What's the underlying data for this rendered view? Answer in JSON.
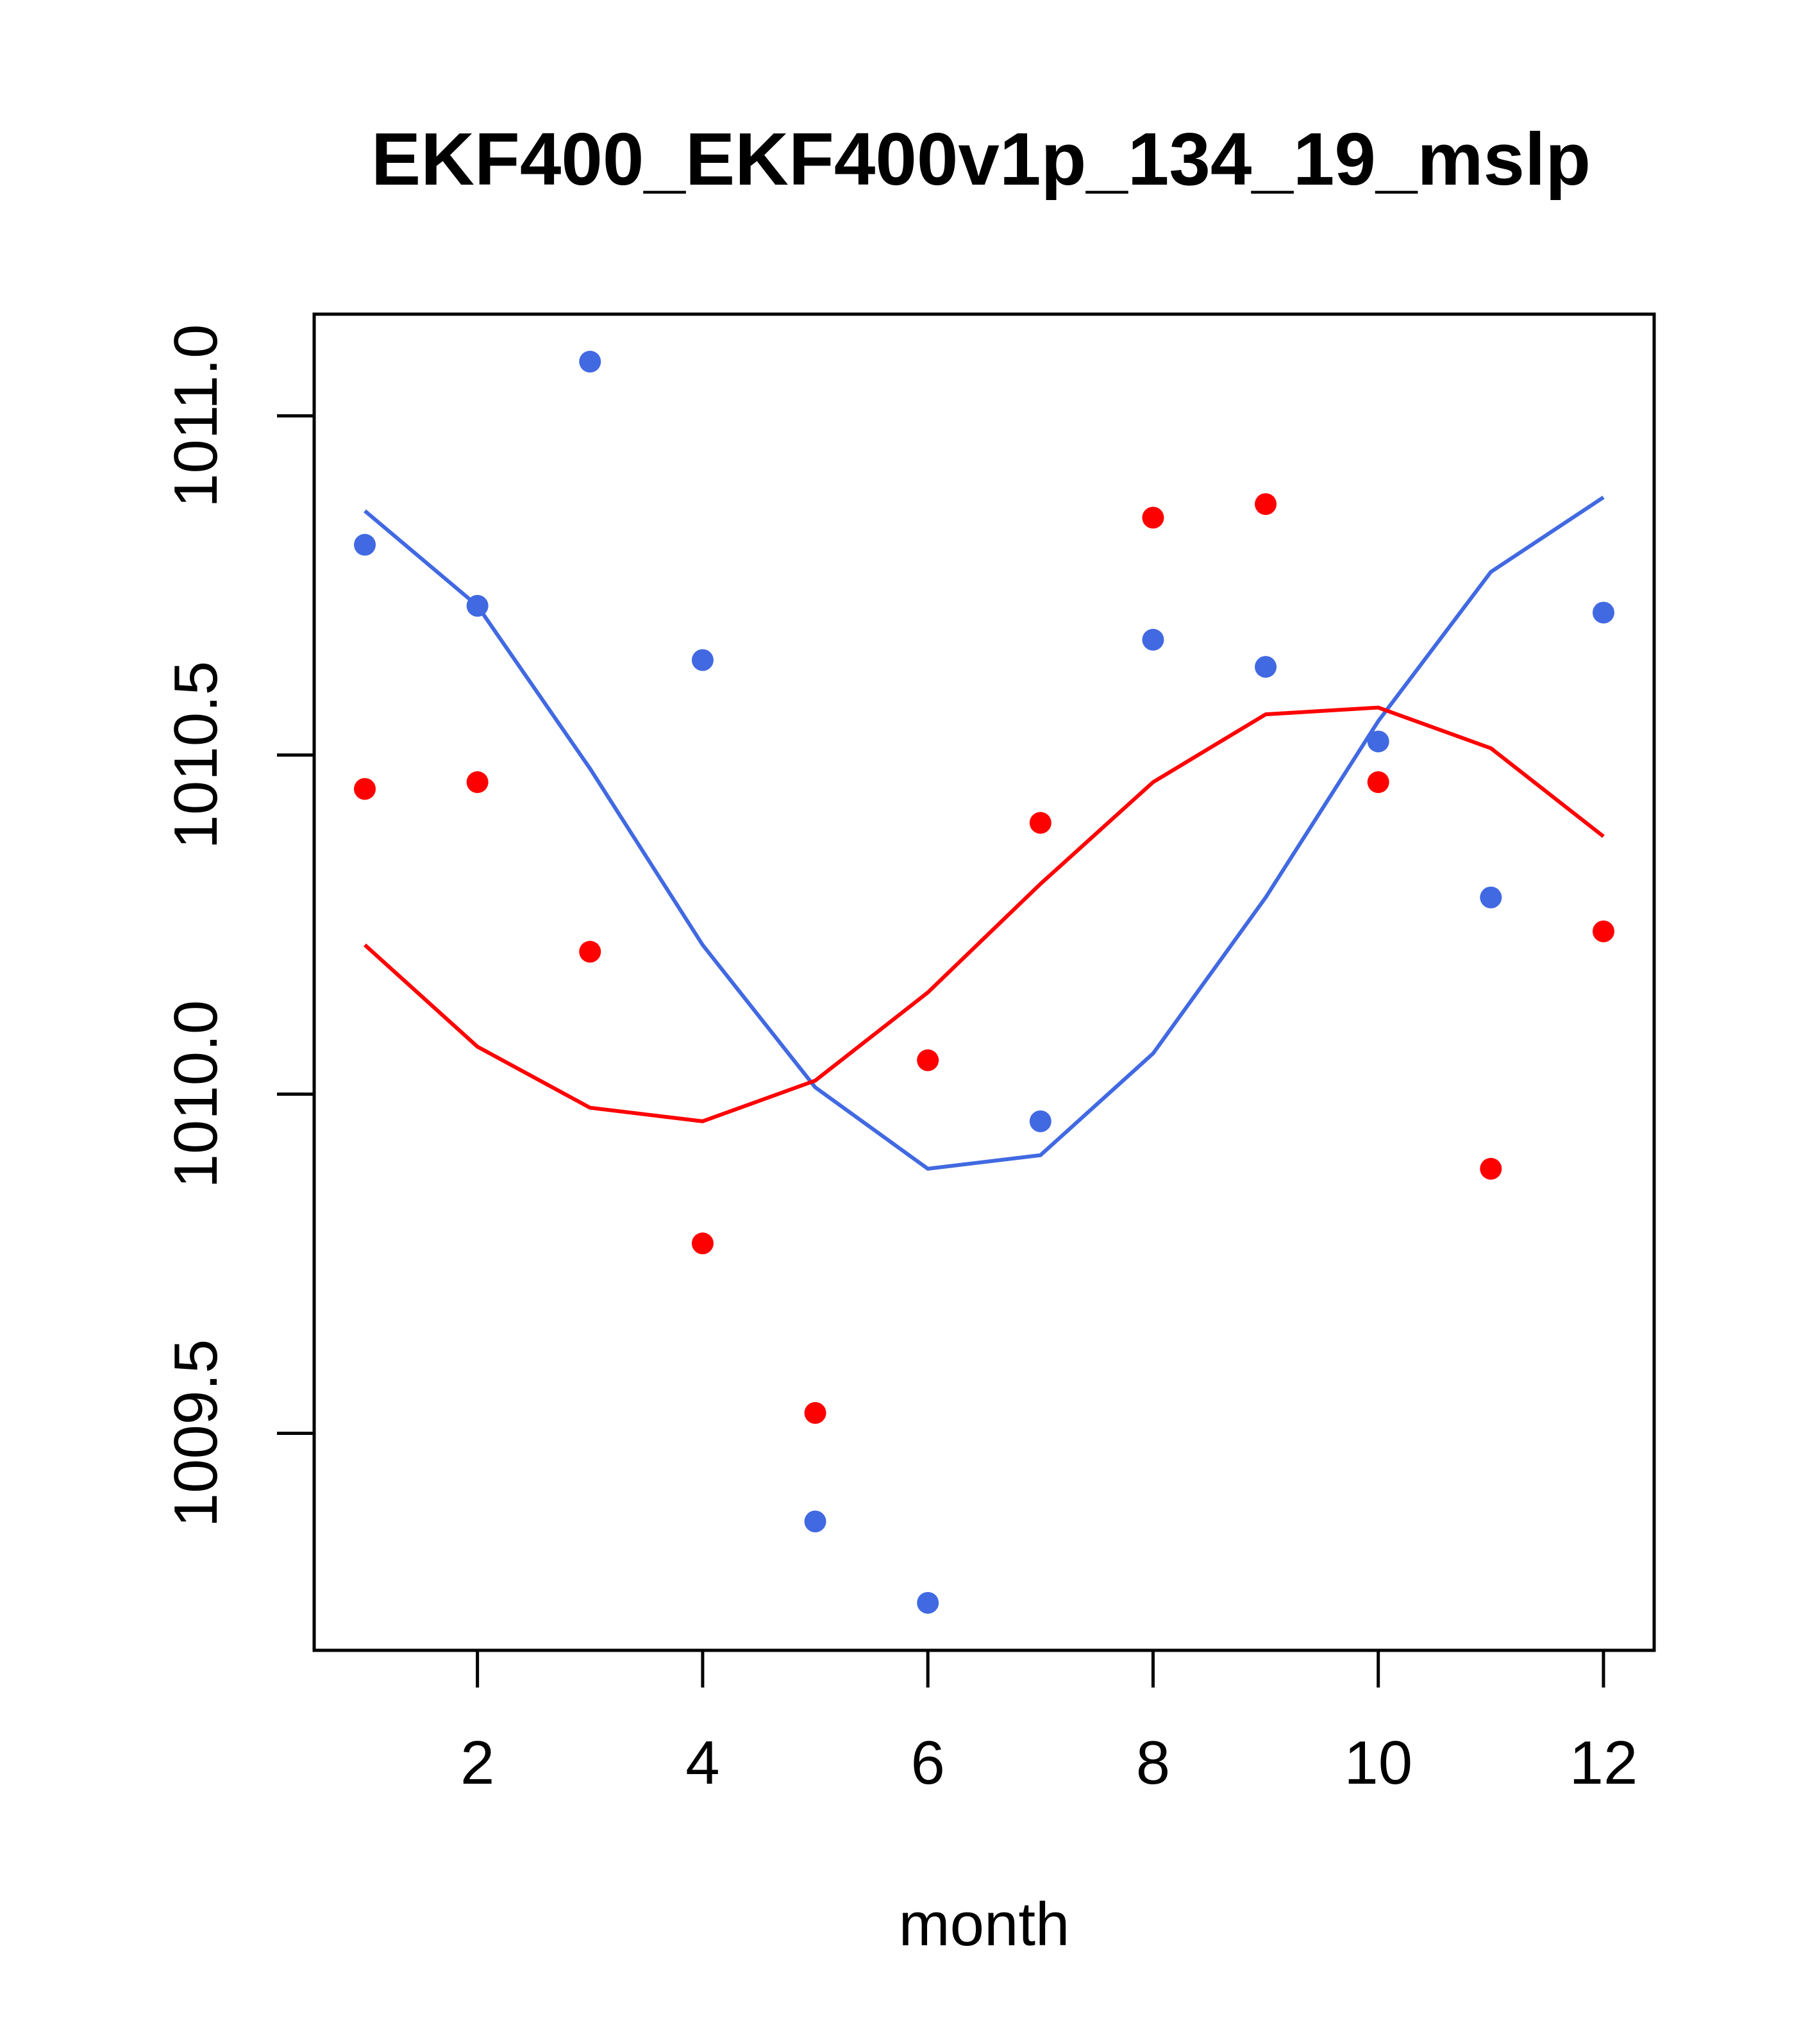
{
  "chart_data": {
    "type": "scatter",
    "title": "EKF400_EKF400v1p_134_19_mslp",
    "xlabel": "month",
    "ylabel": "",
    "xlim": [
      0.55,
      12.45
    ],
    "ylim": [
      1009.18,
      1011.15
    ],
    "x_ticks": [
      2,
      4,
      6,
      8,
      10,
      12
    ],
    "x_tick_labels": [
      "2",
      "4",
      "6",
      "8",
      "10",
      "12"
    ],
    "y_ticks": [
      1009.5,
      1010.0,
      1010.5,
      1011.0
    ],
    "y_tick_labels": [
      "1009.5",
      "1010.0",
      "1010.5",
      "1011.0"
    ],
    "x": [
      1,
      2,
      3,
      4,
      5,
      6,
      7,
      8,
      9,
      10,
      11,
      12
    ],
    "series": [
      {
        "name": "blue points",
        "kind": "points",
        "color": "#4169E1",
        "values": [
          1010.81,
          1010.72,
          1011.08,
          1010.64,
          1009.37,
          1009.25,
          1009.96,
          1010.67,
          1010.63,
          1010.52,
          1010.29,
          1010.71
        ]
      },
      {
        "name": "blue fit",
        "kind": "line",
        "color": "#4169E1",
        "values": [
          1010.86,
          1010.72,
          1010.48,
          1010.22,
          1010.01,
          1009.89,
          1009.91,
          1010.06,
          1010.29,
          1010.55,
          1010.77,
          1010.88
        ]
      },
      {
        "name": "red points",
        "kind": "points",
        "color": "#FF0000",
        "values": [
          1010.45,
          1010.46,
          1010.21,
          1009.78,
          1009.53,
          1010.05,
          1010.4,
          1010.85,
          1010.87,
          1010.46,
          1009.89,
          1010.24
        ]
      },
      {
        "name": "red fit",
        "kind": "line",
        "color": "#FF0000",
        "values": [
          1010.22,
          1010.07,
          1009.98,
          1009.96,
          1010.02,
          1010.15,
          1010.31,
          1010.46,
          1010.56,
          1010.57,
          1010.51,
          1010.38
        ]
      }
    ]
  }
}
